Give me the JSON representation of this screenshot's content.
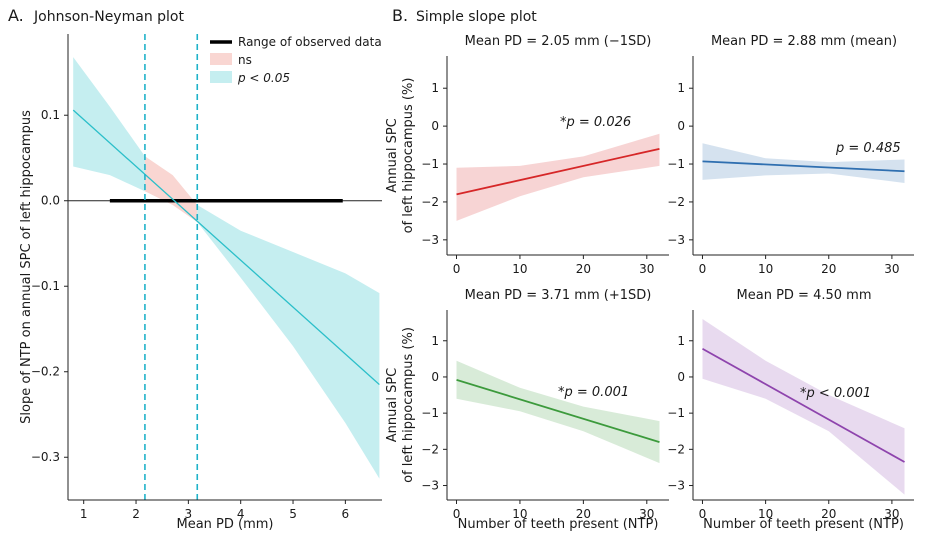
{
  "panels": {
    "a_label": "A.",
    "a_title": "Johnson-Neyman plot",
    "b_label": "B.",
    "b_title": "Simple slope plot"
  },
  "colors": {
    "ns_band": "#f9d6d2",
    "sig_band": "#c5eef0",
    "jn_line": "#2bbfc9",
    "red": "#d62728",
    "blue": "#2f6fb0",
    "green": "#3c9a3c",
    "purple": "#8e44ad"
  },
  "chart_data": [
    {
      "type": "line",
      "id": "johnson-neyman",
      "title": "Johnson-Neyman plot",
      "xlabel": "Mean PD (mm)",
      "ylabel": "Slope of NTP on annual SPC of left hippocampus",
      "xlim": [
        0.7,
        6.7
      ],
      "ylim": [
        -0.35,
        0.195
      ],
      "xticks": [
        1,
        2,
        3,
        4,
        5,
        6
      ],
      "yticks": [
        -0.3,
        -0.2,
        -0.1,
        0.0,
        0.1
      ],
      "ytick_labels": [
        "−0.3",
        "−0.2",
        "−0.1",
        "0.0",
        "0.1"
      ],
      "slope": {
        "x": [
          0.8,
          6.65
        ],
        "y": [
          0.106,
          -0.215
        ]
      },
      "band": {
        "x": [
          0.8,
          1.5,
          2.17,
          2.7,
          3.17,
          4.0,
          5.0,
          6.0,
          6.65
        ],
        "lower": [
          0.04,
          0.03,
          0.011,
          -0.005,
          -0.025,
          -0.09,
          -0.17,
          -0.26,
          -0.325
        ],
        "upper": [
          0.168,
          0.11,
          0.052,
          0.03,
          -0.005,
          -0.035,
          -0.06,
          -0.085,
          -0.108
        ]
      },
      "jn_bounds": [
        2.17,
        3.17
      ],
      "observed_range": [
        1.5,
        5.95
      ],
      "legend": {
        "position": "top-right",
        "entries": [
          "Range of observed data",
          "ns",
          "p < 0.05"
        ]
      }
    },
    {
      "type": "line",
      "id": "slope-1sd-below",
      "title": "Mean PD = 2.05 mm (−1SD)",
      "ylabel": "Annual SPC of left hippocampus (%)",
      "xlim": [
        -1.5,
        33.5
      ],
      "ylim": [
        -3.4,
        1.85
      ],
      "xticks": [
        0,
        10,
        20,
        30
      ],
      "yticks": [
        -3,
        -2,
        -1,
        0,
        1
      ],
      "ytick_labels": [
        "−3",
        "−2",
        "−1",
        "0",
        "1"
      ],
      "line": {
        "x": [
          0,
          32
        ],
        "y": [
          -1.8,
          -0.6
        ]
      },
      "band": {
        "x": [
          0,
          10,
          20,
          32
        ],
        "lower": [
          -2.5,
          -1.85,
          -1.35,
          -1.05
        ],
        "upper": [
          -1.1,
          -1.05,
          -0.8,
          -0.2
        ]
      },
      "annotation": "*p = 0.026",
      "color": "red"
    },
    {
      "type": "line",
      "id": "slope-mean",
      "title": "Mean PD = 2.88 mm (mean)",
      "xlim": [
        -1.5,
        33.5
      ],
      "ylim": [
        -3.4,
        1.85
      ],
      "xticks": [
        0,
        10,
        20,
        30
      ],
      "yticks": [
        -3,
        -2,
        -1,
        0,
        1
      ],
      "ytick_labels": [
        "−3",
        "−2",
        "−1",
        "0",
        "1"
      ],
      "line": {
        "x": [
          0,
          32
        ],
        "y": [
          -0.93,
          -1.19
        ]
      },
      "band": {
        "x": [
          0,
          10,
          20,
          32
        ],
        "lower": [
          -1.42,
          -1.3,
          -1.25,
          -1.5
        ],
        "upper": [
          -0.45,
          -0.85,
          -0.95,
          -0.88
        ]
      },
      "annotation": "p = 0.485",
      "color": "blue"
    },
    {
      "type": "line",
      "id": "slope-1sd-above",
      "title": "Mean PD = 3.71 mm (+1SD)",
      "xlabel": "Number of teeth present (NTP)",
      "ylabel": "Annual SPC of left hippocampus (%)",
      "xlim": [
        -1.5,
        33.5
      ],
      "ylim": [
        -3.4,
        1.85
      ],
      "xticks": [
        0,
        10,
        20,
        30
      ],
      "yticks": [
        -3,
        -2,
        -1,
        0,
        1
      ],
      "ytick_labels": [
        "−3",
        "−2",
        "−1",
        "0",
        "1"
      ],
      "line": {
        "x": [
          0,
          32
        ],
        "y": [
          -0.08,
          -1.8
        ]
      },
      "band": {
        "x": [
          0,
          10,
          20,
          32
        ],
        "lower": [
          -0.6,
          -0.95,
          -1.5,
          -2.38
        ],
        "upper": [
          0.45,
          -0.3,
          -0.82,
          -1.22
        ]
      },
      "annotation": "*p = 0.001",
      "color": "green"
    },
    {
      "type": "line",
      "id": "slope-4-50",
      "title": "Mean PD = 4.50 mm",
      "xlabel": "Number of teeth present (NTP)",
      "xlim": [
        -1.5,
        33.5
      ],
      "ylim": [
        -3.4,
        1.85
      ],
      "xticks": [
        0,
        10,
        20,
        30
      ],
      "yticks": [
        -3,
        -2,
        -1,
        0,
        1
      ],
      "ytick_labels": [
        "−3",
        "−2",
        "−1",
        "0",
        "1"
      ],
      "line": {
        "x": [
          0,
          32
        ],
        "y": [
          0.78,
          -2.35
        ]
      },
      "band": {
        "x": [
          0,
          10,
          20,
          32
        ],
        "lower": [
          -0.05,
          -0.6,
          -1.5,
          -3.25
        ],
        "upper": [
          1.6,
          0.45,
          -0.5,
          -1.42
        ]
      },
      "annotation": "*p < 0.001",
      "color": "purple"
    }
  ]
}
